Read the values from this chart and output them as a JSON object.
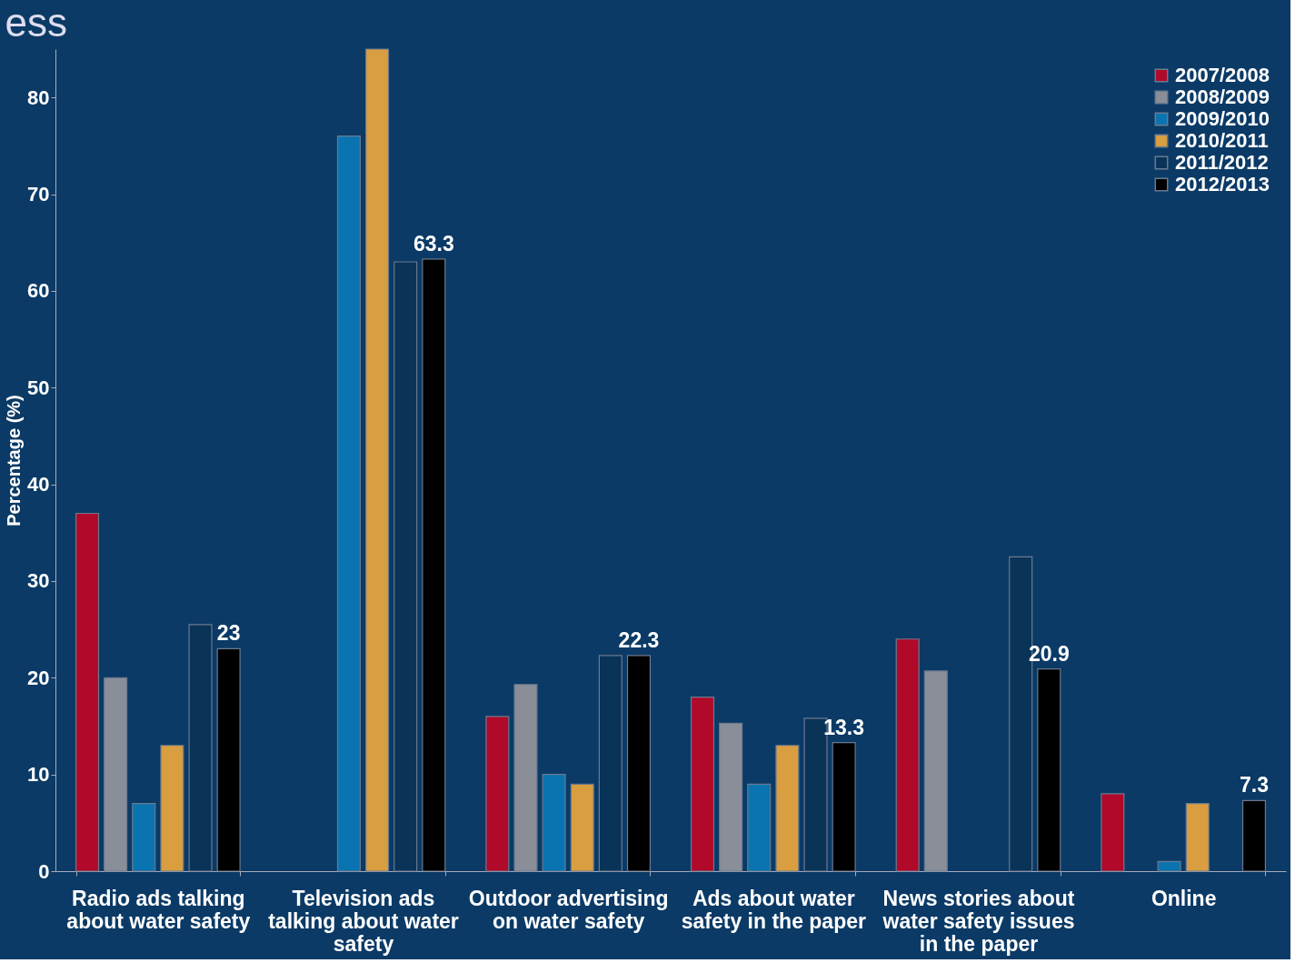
{
  "chart_data": {
    "type": "bar",
    "title": "ess",
    "ylabel": "Percentage (%)",
    "categories": [
      "Radio ads talking about water safety",
      "Television ads talking about water safety",
      "Outdoor advertising on water safety",
      "Ads about water safety in the paper",
      "News stories about water safety issues in the paper",
      "Online"
    ],
    "ylim": [
      0,
      85
    ],
    "yticks": [
      0,
      10,
      20,
      30,
      40,
      50,
      60,
      70,
      80
    ],
    "grid": false,
    "legend": "top right",
    "series": [
      {
        "name": "2007/2008",
        "color": "#b0092a",
        "values": [
          37,
          null,
          16,
          18,
          24,
          8
        ]
      },
      {
        "name": "2008/2009",
        "color": "#8a8e99",
        "values": [
          20,
          null,
          19.3,
          15.3,
          20.7,
          null
        ]
      },
      {
        "name": "2009/2010",
        "color": "#0a74b0",
        "values": [
          7,
          76,
          10,
          9,
          null,
          1
        ]
      },
      {
        "name": "2010/2011",
        "color": "#d89e40",
        "values": [
          13,
          85,
          9,
          13,
          null,
          7
        ]
      },
      {
        "name": "2011/2012",
        "color": "#0a3358",
        "values": [
          25.5,
          63,
          22.3,
          15.8,
          32.5,
          null
        ]
      },
      {
        "name": "2012/2013",
        "color": "#000000",
        "values": [
          23,
          63.3,
          22.3,
          13.3,
          20.9,
          7.3
        ],
        "value_labels": [
          "23",
          "63.3",
          "22.3",
          "13.3",
          "20.9",
          "7.3"
        ]
      }
    ]
  }
}
